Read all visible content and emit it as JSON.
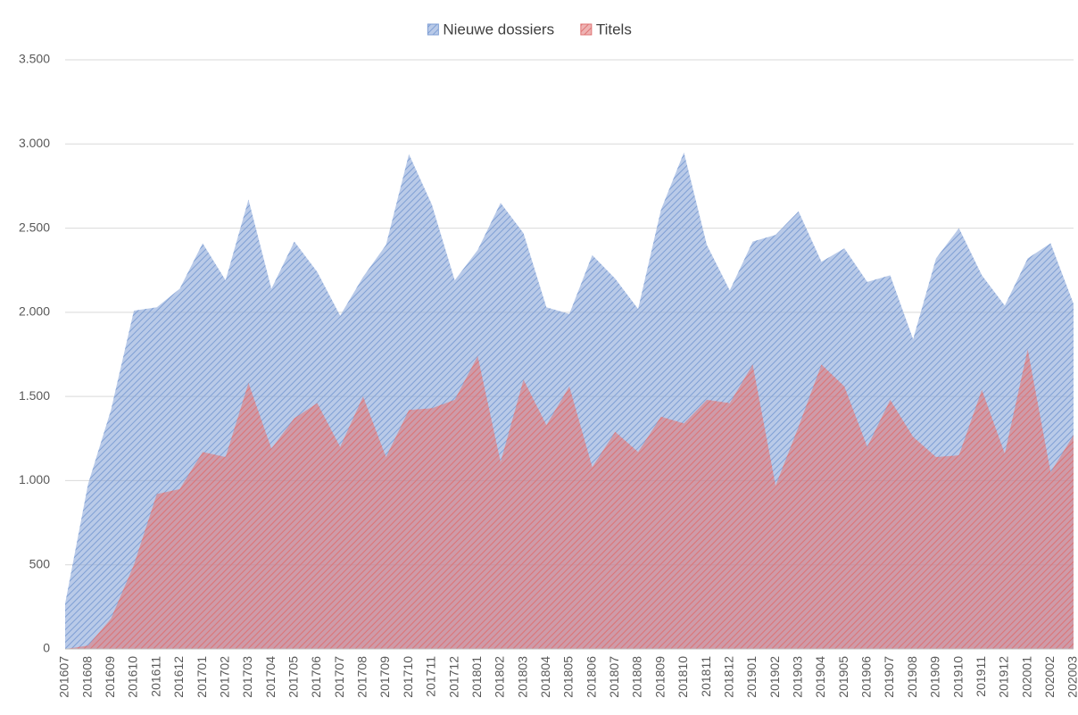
{
  "chart_data": {
    "type": "area",
    "categories": [
      "201607",
      "201608",
      "201609",
      "201610",
      "201611",
      "201612",
      "201701",
      "201702",
      "201703",
      "201704",
      "201705",
      "201706",
      "201707",
      "201708",
      "201709",
      "201710",
      "201711",
      "201712",
      "201801",
      "201802",
      "201803",
      "201804",
      "201805",
      "201806",
      "201807",
      "201808",
      "201809",
      "201810",
      "201811",
      "201812",
      "201901",
      "201902",
      "201903",
      "201904",
      "201905",
      "201906",
      "201907",
      "201908",
      "201909",
      "201910",
      "201911",
      "201912",
      "202001",
      "202002",
      "202003"
    ],
    "series": [
      {
        "name": "Nieuwe dossiers",
        "color": "#7f9fd4",
        "values": [
          270,
          980,
          1420,
          2010,
          2030,
          2140,
          2410,
          2190,
          2670,
          2140,
          2420,
          2240,
          1980,
          2210,
          2400,
          2940,
          2640,
          2190,
          2370,
          2650,
          2470,
          2030,
          1990,
          2340,
          2200,
          2020,
          2610,
          2950,
          2400,
          2130,
          2420,
          2460,
          2600,
          2300,
          2380,
          2180,
          2220,
          1840,
          2320,
          2500,
          2220,
          2040,
          2320,
          2410,
          2050
        ]
      },
      {
        "name": "Titels",
        "color": "#e07575",
        "values": [
          0,
          20,
          180,
          500,
          920,
          950,
          1170,
          1140,
          1580,
          1190,
          1370,
          1460,
          1200,
          1500,
          1140,
          1420,
          1430,
          1480,
          1740,
          1110,
          1600,
          1330,
          1560,
          1080,
          1290,
          1170,
          1380,
          1340,
          1480,
          1460,
          1690,
          970,
          1320,
          1690,
          1560,
          1200,
          1480,
          1260,
          1140,
          1150,
          1540,
          1160,
          1780,
          1050,
          1270
        ]
      }
    ],
    "ylim": [
      0,
      3500
    ],
    "yticks": [
      0,
      500,
      {
        "value": 1000,
        "label": "1.000"
      },
      {
        "value": 1500,
        "label": "1.500"
      },
      {
        "value": 2000,
        "label": "2.000"
      },
      {
        "value": 2500,
        "label": "2.500"
      },
      {
        "value": 3000,
        "label": "3.000"
      },
      {
        "value": 3500,
        "label": "3.500"
      }
    ],
    "grid": true,
    "legend": "top"
  }
}
